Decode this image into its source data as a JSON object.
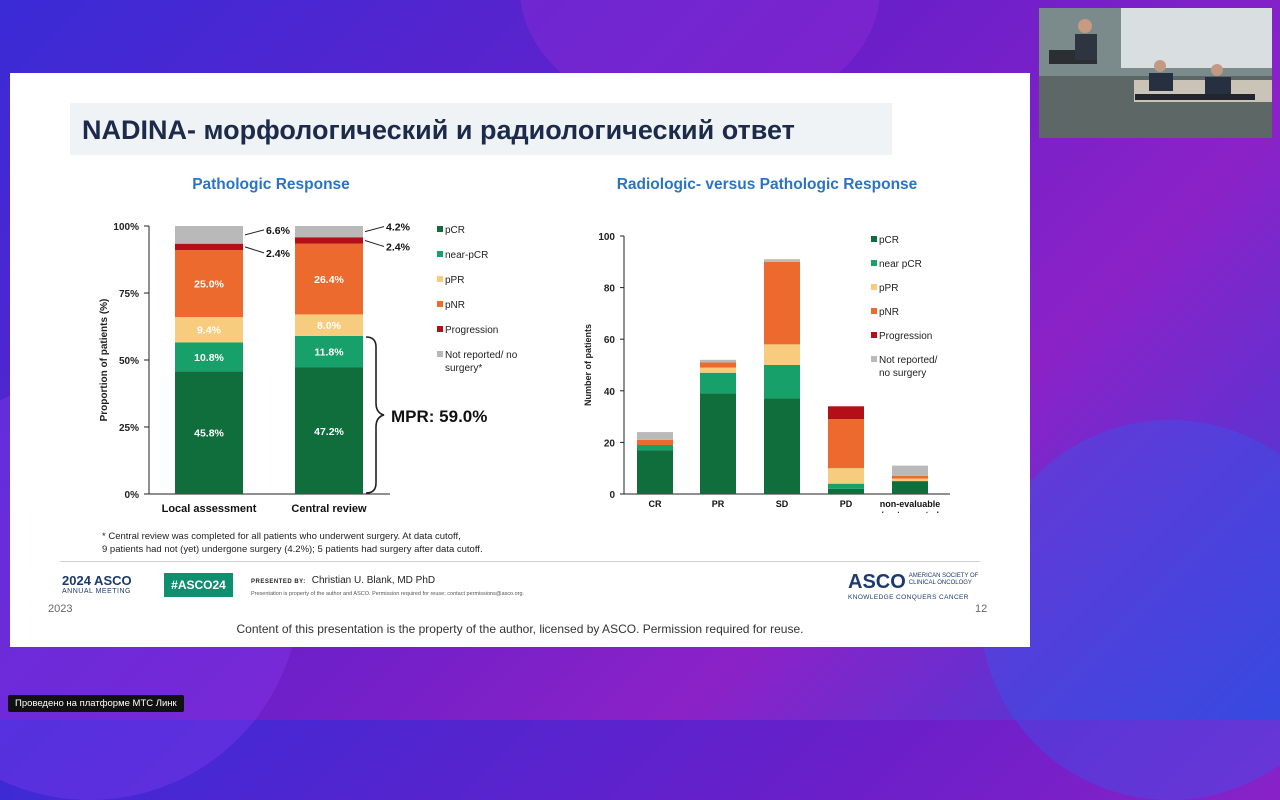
{
  "slide": {
    "title": "NADINA- морфологический и радиологический ответ",
    "footnote_line1": "* Central review was completed for all patients who underwent surgery. At data cutoff,",
    "footnote_line2": "9 patients had not (yet) undergone surgery (4.2%); 5 patients had surgery after data cutoff.",
    "asco_meeting_year": "2024 ASCO",
    "asco_meeting_sub": "ANNUAL MEETING",
    "hashtag": "#ASCO24",
    "presented_by_label": "PRESENTED BY:",
    "presenter": "Christian U. Blank, MD PhD",
    "presenter_note": "Presentation is property of the author and ASCO. Permission required for reuse; contact permissions@asco.org.",
    "asco_logo": "ASCO",
    "asco_society_line1": "AMERICAN SOCIETY OF",
    "asco_society_line2": "CLINICAL ONCOLOGY",
    "asco_tagline": "KNOWLEDGE CONQUERS CANCER",
    "year_partial": "2023",
    "page_partial": "12",
    "copyright": "Content of this presentation is the property of the author, licensed by ASCO. Permission required for reuse."
  },
  "platform_badge": "Проведено на платформе МТС Линк",
  "colors": {
    "pCR": "#0f6e3c",
    "near_pCR": "#17a06a",
    "pPR": "#f8cc7e",
    "pNR": "#ed6a2e",
    "progression": "#b30f16",
    "not_reported": "#b9b9b9"
  },
  "chart_data": [
    {
      "type": "bar",
      "stacked": true,
      "title": "Pathologic Response",
      "ylabel": "Proportion of patients (%)",
      "xlabel": "",
      "ylim": [
        0,
        100
      ],
      "yticks": [
        "0%",
        "25%",
        "50%",
        "75%",
        "100%"
      ],
      "categories": [
        "Local assessment",
        "Central review"
      ],
      "series": [
        {
          "name": "pCR",
          "values": [
            45.8,
            47.2
          ],
          "labels": [
            "45.8%",
            "47.2%"
          ]
        },
        {
          "name": "near-pCR",
          "values": [
            10.8,
            11.8
          ],
          "labels": [
            "10.8%",
            "11.8%"
          ]
        },
        {
          "name": "pPR",
          "values": [
            9.4,
            8.0
          ],
          "labels": [
            "9.4%",
            "8.0%"
          ]
        },
        {
          "name": "pNR",
          "values": [
            25.0,
            26.4
          ],
          "labels": [
            "25.0%",
            "26.4%"
          ]
        },
        {
          "name": "Progression",
          "values": [
            2.4,
            2.4
          ],
          "labels": [
            "2.4%",
            "2.4%"
          ]
        },
        {
          "name": "Not reported/ no surgery*",
          "values": [
            6.6,
            4.2
          ],
          "labels": [
            "6.6%",
            "4.2%"
          ]
        }
      ],
      "legend": [
        "pCR",
        "near-pCR",
        "pPR",
        "pNR",
        "Progression",
        "Not reported/ no",
        "surgery*"
      ],
      "annotation": "MPR: 59.0%"
    },
    {
      "type": "bar",
      "stacked": true,
      "title": "Radiologic- versus Pathologic Response",
      "ylabel": "Number of patients",
      "xlabel": "",
      "ylim": [
        0,
        100
      ],
      "yticks": [
        "0",
        "20",
        "40",
        "60",
        "80",
        "100"
      ],
      "categories": [
        "CR",
        "PR",
        "SD",
        "PD",
        "non-evaluable / not reported"
      ],
      "category_lines": [
        [
          "CR"
        ],
        [
          "PR"
        ],
        [
          "SD"
        ],
        [
          "PD"
        ],
        [
          "non-evaluable",
          "/ not reported"
        ]
      ],
      "series": [
        {
          "name": "pCR",
          "values": [
            17,
            39,
            37,
            2,
            5
          ]
        },
        {
          "name": "near pCR",
          "values": [
            2,
            8,
            13,
            2,
            0
          ]
        },
        {
          "name": "pPR",
          "values": [
            0,
            2,
            8,
            6,
            1
          ]
        },
        {
          "name": "pNR",
          "values": [
            2,
            2,
            32,
            19,
            1
          ]
        },
        {
          "name": "Progression",
          "values": [
            0,
            0,
            0,
            5,
            0
          ]
        },
        {
          "name": "Not reported/ no surgery",
          "values": [
            3,
            1,
            1,
            0,
            4
          ]
        }
      ],
      "legend": [
        "pCR",
        "near pCR",
        "pPR",
        "pNR",
        "Progression",
        "Not reported/",
        "no surgery"
      ]
    }
  ]
}
